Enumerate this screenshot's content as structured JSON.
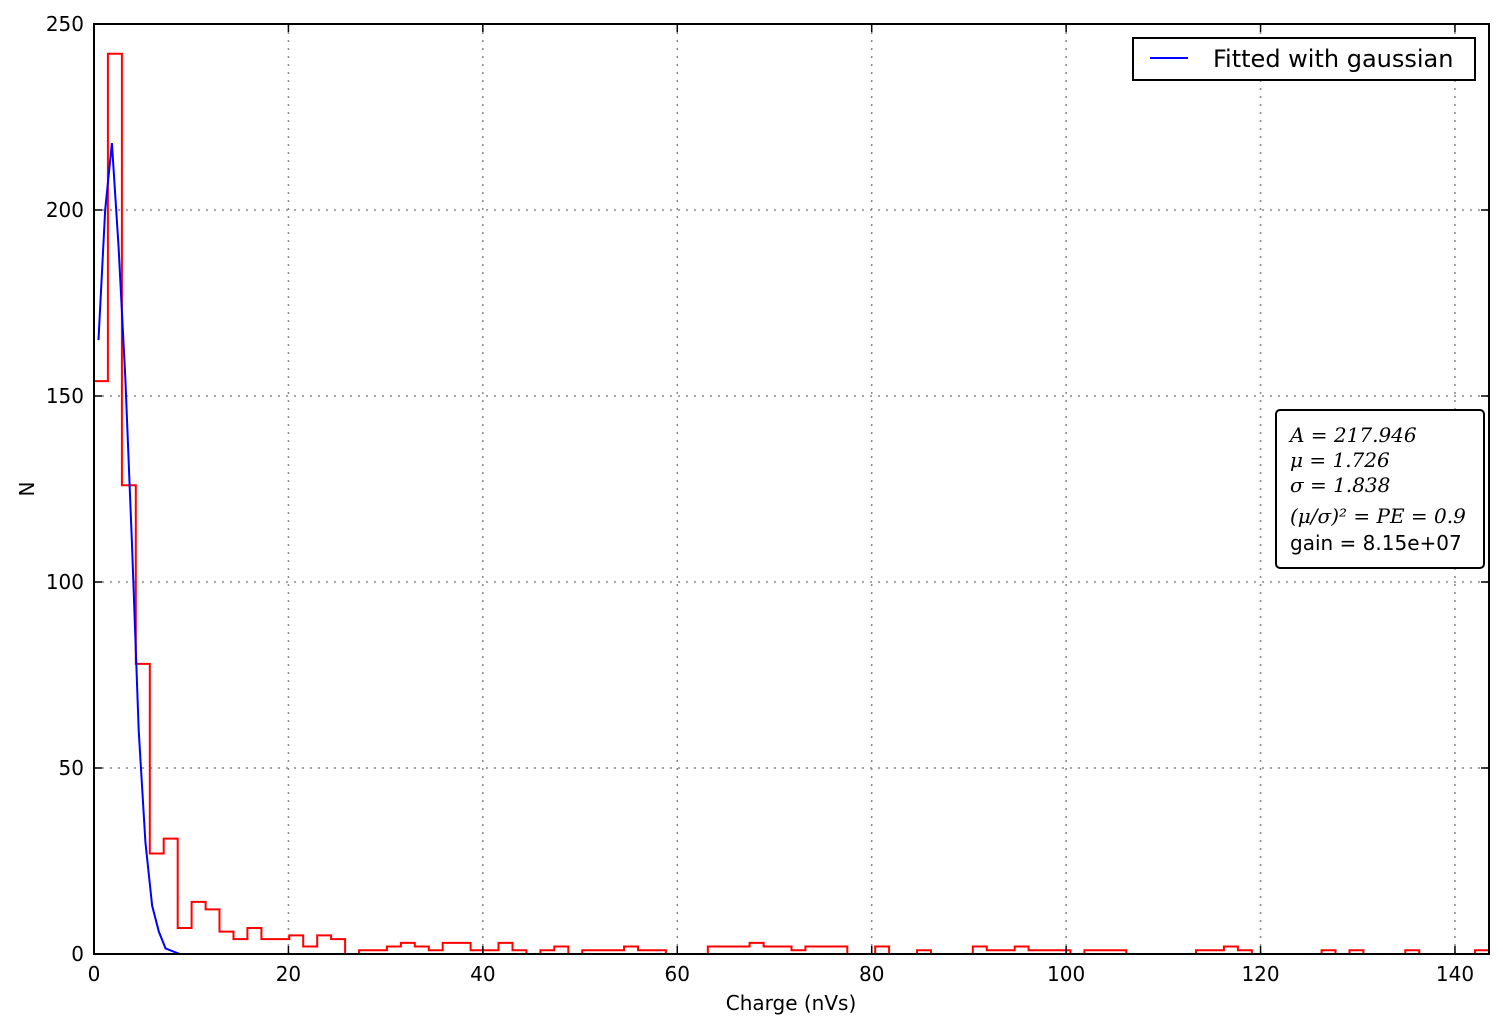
{
  "chart_data": {
    "type": "histogram",
    "title": "",
    "xlabel": "Charge (nVs)",
    "ylabel": "N",
    "xlim": [
      0,
      143.5
    ],
    "ylim": [
      0,
      250
    ],
    "xticks": [
      0,
      20,
      40,
      60,
      80,
      100,
      120,
      140
    ],
    "yticks": [
      0,
      50,
      100,
      150,
      200,
      250
    ],
    "xtick_labels": [
      "0",
      "20",
      "40",
      "60",
      "80",
      "100",
      "120",
      "140"
    ],
    "ytick_labels": [
      "0",
      "50",
      "100",
      "150",
      "200",
      "250"
    ],
    "grid": true,
    "legend_position": "upper right",
    "histogram": {
      "color": "#ff0000",
      "bin_edges": [
        0.0,
        1.43,
        2.87,
        4.3,
        5.74,
        7.17,
        8.61,
        10.04,
        11.48,
        12.91,
        14.35,
        15.78,
        17.22,
        18.65,
        20.09,
        21.52,
        22.96,
        24.39,
        25.83,
        27.26,
        28.7,
        30.13,
        31.57,
        33.0,
        34.44,
        35.87,
        37.31,
        38.74,
        40.18,
        41.61,
        43.05,
        44.48,
        45.92,
        47.35,
        48.79,
        50.22,
        51.66,
        53.09,
        54.53,
        55.96,
        57.4,
        58.83,
        60.27,
        61.7,
        63.14,
        64.57,
        66.01,
        67.44,
        68.88,
        70.31,
        71.75,
        73.18,
        74.62,
        76.05,
        77.49,
        78.92,
        80.36,
        81.79,
        83.23,
        84.66,
        86.1,
        87.53,
        88.97,
        90.4,
        91.84,
        93.27,
        94.71,
        96.14,
        97.58,
        99.01,
        100.45,
        101.88,
        103.32,
        104.75,
        106.19,
        107.62,
        109.06,
        110.49,
        111.93,
        113.36,
        114.8,
        116.23,
        117.67,
        119.1,
        120.54,
        121.97,
        123.41,
        124.84,
        126.28,
        127.71,
        129.15,
        130.58,
        132.02,
        133.45,
        134.89,
        136.32,
        137.76,
        139.19,
        140.63,
        142.06,
        143.5
      ],
      "counts": [
        154,
        242,
        126,
        78,
        27,
        31,
        7,
        14,
        12,
        6,
        4,
        7,
        4,
        4,
        5,
        2,
        5,
        4,
        0,
        1,
        1,
        2,
        3,
        2,
        1,
        3,
        3,
        1,
        1,
        3,
        1,
        0,
        1,
        2,
        0,
        1,
        1,
        1,
        2,
        1,
        1,
        0,
        0,
        0,
        2,
        2,
        2,
        3,
        2,
        2,
        1,
        2,
        2,
        2,
        0,
        0,
        2,
        0,
        0,
        1,
        0,
        0,
        0,
        2,
        1,
        1,
        2,
        1,
        1,
        1,
        0,
        1,
        1,
        1,
        0,
        0,
        0,
        0,
        0,
        1,
        1,
        2,
        1,
        0,
        0,
        0,
        0,
        0,
        1,
        0,
        1,
        0,
        0,
        0,
        1,
        0,
        0,
        0,
        0,
        1
      ]
    },
    "series": [
      {
        "name": "Fitted with gaussian",
        "type": "line",
        "color": "#0000ff",
        "x": [
          0.46,
          1.15,
          1.84,
          2.53,
          3.22,
          3.91,
          4.6,
          5.29,
          5.98,
          6.67,
          7.36,
          8.05,
          8.74
        ],
        "y": [
          165,
          200,
          218,
          190,
          155,
          110,
          60,
          30,
          13,
          6,
          1.5,
          0.8,
          0.1
        ]
      }
    ],
    "stats_box": {
      "lines": [
        {
          "math": "A = 217.946"
        },
        {
          "math": "μ = 1.726"
        },
        {
          "math": "σ = 1.838"
        },
        {
          "math": "(μ/σ)² = PE = 0.9"
        },
        {
          "text": "gain = 8.15e+07"
        }
      ]
    }
  }
}
